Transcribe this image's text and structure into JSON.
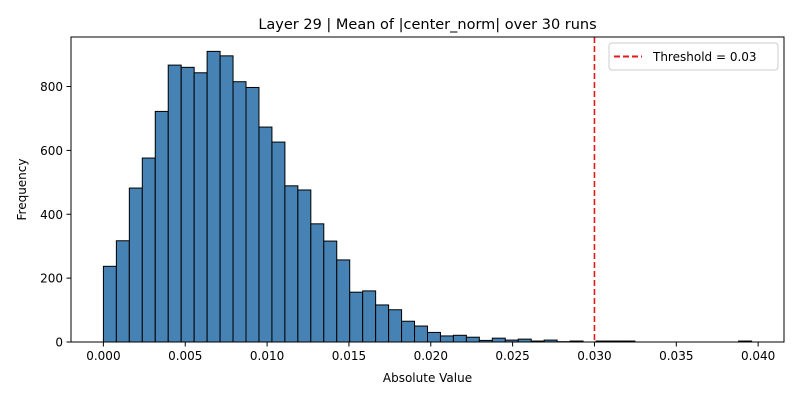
{
  "chart_data": {
    "type": "bar",
    "title": "Layer 29 | Mean of |center_norm| over 30 runs",
    "xlabel": "Absolute Value",
    "ylabel": "Frequency",
    "xlim": [
      -0.00198,
      0.04158
    ],
    "ylim": [
      0,
      955
    ],
    "x_ticks": [
      0.0,
      0.005,
      0.01,
      0.015,
      0.02,
      0.025,
      0.03,
      0.035,
      0.04
    ],
    "x_tick_labels": [
      "0.000",
      "0.005",
      "0.010",
      "0.015",
      "0.020",
      "0.025",
      "0.030",
      "0.035",
      "0.040"
    ],
    "y_ticks": [
      0,
      200,
      400,
      600,
      800
    ],
    "y_tick_labels": [
      "0",
      "200",
      "400",
      "600",
      "800"
    ],
    "bin_start": 0.0,
    "bin_width": 0.000792,
    "counts": [
      237,
      317,
      482,
      576,
      722,
      867,
      860,
      843,
      910,
      896,
      815,
      797,
      673,
      626,
      489,
      476,
      370,
      316,
      257,
      156,
      160,
      116,
      101,
      65,
      50,
      30,
      19,
      21,
      15,
      5,
      12,
      6,
      9,
      3,
      6,
      1,
      3,
      0,
      3,
      3,
      3,
      0,
      0,
      0,
      0,
      0,
      0,
      0,
      0,
      3
    ],
    "bar_color": "#4682b4",
    "bar_edge_color": "#000000",
    "threshold": {
      "value": 0.03,
      "label": "Threshold = 0.03",
      "color": "#e31a1c",
      "style": "dashed"
    },
    "legend_position": "top-right",
    "grid": false
  }
}
